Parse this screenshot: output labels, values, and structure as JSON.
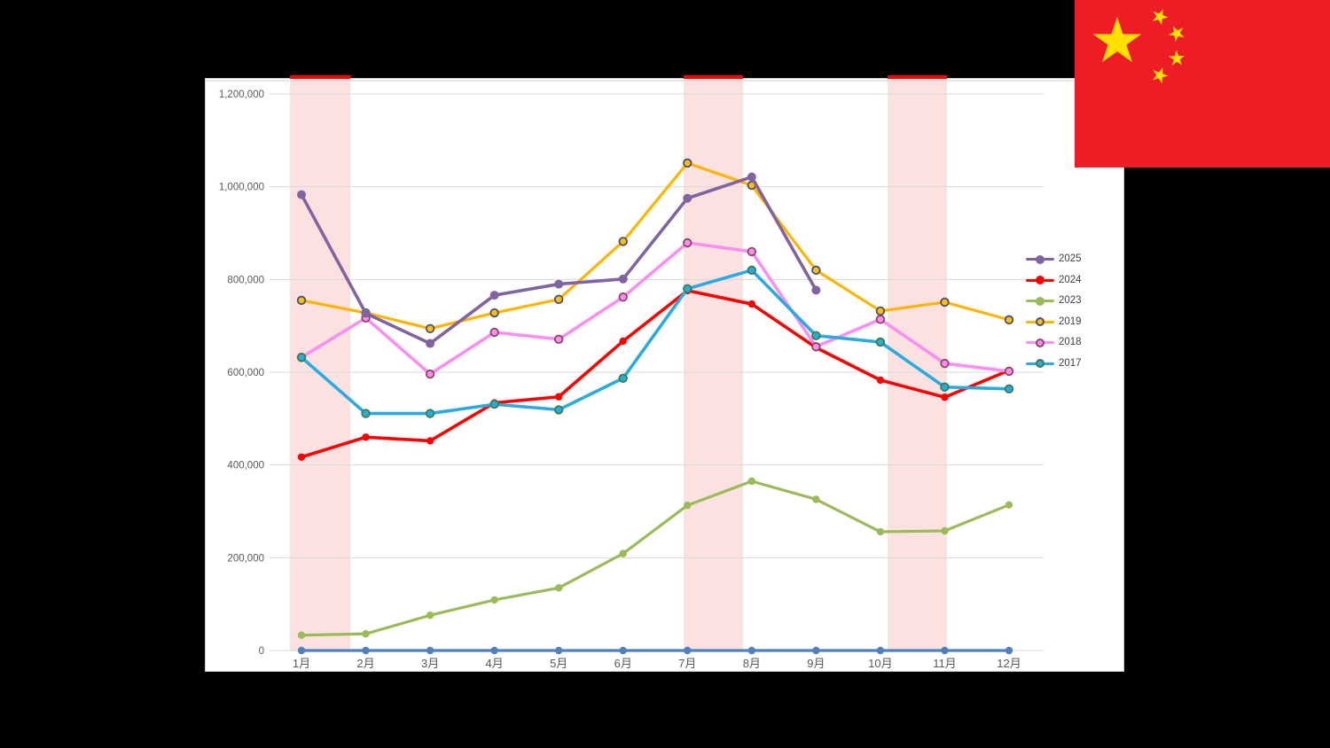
{
  "flag": {
    "name": "flag-of-china",
    "field_color": "#EE1C25",
    "star_color": "#FFDE00"
  },
  "chart_data": {
    "type": "line",
    "categories": [
      "1月",
      "2月",
      "3月",
      "4月",
      "5月",
      "6月",
      "7月",
      "8月",
      "9月",
      "10月",
      "11月",
      "12月"
    ],
    "series": [
      {
        "name": "2025",
        "color": "#8064A2",
        "marker": "solid",
        "marker_fill": "#8064A2",
        "marker_stroke": "#8064A2",
        "values": [
          983000,
          727000,
          662000,
          766000,
          790000,
          801000,
          975000,
          1021000,
          777000,
          null,
          null,
          null
        ]
      },
      {
        "name": "2024",
        "color": "#FF0000",
        "marker": "solid",
        "marker_fill": "#FF0000",
        "marker_stroke": "#D40000",
        "values": [
          417000,
          460000,
          452000,
          534000,
          547000,
          667000,
          776000,
          747000,
          653000,
          583000,
          546000,
          604000
        ]
      },
      {
        "name": "2023",
        "color": "#9BBB59",
        "marker": "solid",
        "marker_fill": "#9BBB59",
        "marker_stroke": "#84A23E",
        "values": [
          33000,
          36000,
          76000,
          109000,
          135000,
          209000,
          313000,
          365000,
          326000,
          256000,
          258000,
          314000
        ]
      },
      {
        "name": "2019",
        "color": "#FFB400",
        "marker": "ring",
        "marker_fill": "#FFC000",
        "marker_stroke": "#44507B",
        "values": [
          755000,
          728000,
          694000,
          728000,
          757000,
          882000,
          1051000,
          1003000,
          820000,
          732000,
          751000,
          713000
        ]
      },
      {
        "name": "2018",
        "color": "#FB8EF2",
        "marker": "ring",
        "marker_fill": "#FB8EF2",
        "marker_stroke": "#8E4660",
        "values": [
          632000,
          717000,
          596000,
          686000,
          671000,
          762000,
          879000,
          860000,
          655000,
          714000,
          619000,
          602000
        ]
      },
      {
        "name": "2017",
        "color": "#29ABE2",
        "marker": "ring",
        "marker_fill": "#29ABE2",
        "marker_stroke": "#3E7C49",
        "values": [
          632000,
          511000,
          511000,
          531000,
          519000,
          587000,
          780000,
          820000,
          679000,
          665000,
          568000,
          564000
        ]
      },
      {
        "name": "",
        "in_legend": false,
        "color": "#4F81BD",
        "marker": "solid",
        "marker_fill": "#4F81BD",
        "marker_stroke": "#4F81BD",
        "values": [
          0,
          0,
          0,
          0,
          0,
          0,
          0,
          0,
          0,
          0,
          0,
          0
        ]
      }
    ],
    "title": "",
    "xlabel": "",
    "ylabel": "",
    "ylim": [
      0,
      1200000
    ],
    "ytick_step": 200000,
    "ytick_labels": [
      "0",
      "200,000",
      "400,000",
      "600,000",
      "800,000",
      "1,000,000",
      "1,200,000"
    ],
    "grid": "horizontal",
    "grid_color": "#D9D9D9",
    "tick_label_color": "#595959",
    "legend_position": "right",
    "legend_labels": [
      "2025",
      "2024",
      "2023",
      "2019",
      "2018",
      "2017"
    ],
    "highlight_bands": {
      "fill_color": "#F9C9C9",
      "cap_color": "#FF0000",
      "month_ranges": [
        [
          0.82,
          1.76
        ],
        [
          6.94,
          7.87
        ],
        [
          10.11,
          11.03
        ]
      ]
    }
  }
}
